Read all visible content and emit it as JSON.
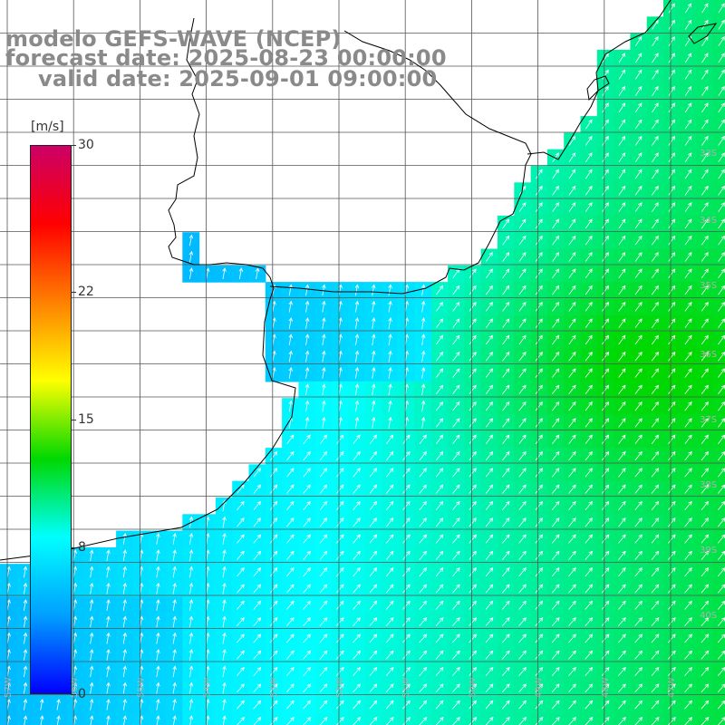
{
  "title": {
    "line1": "modelo GEFS-WAVE (NCEP)",
    "line2": "forecast date: 2025-08-23 00:00:00",
    "line3": "valid date: 2025-09-01 09:00:00"
  },
  "colorbar": {
    "unit": "[m/s]",
    "min": 0,
    "max": 30,
    "ticks": [
      {
        "value": 30,
        "label": "30"
      },
      {
        "value": 22,
        "label": "22"
      },
      {
        "value": 15,
        "label": "15"
      },
      {
        "value": 8,
        "label": "8"
      },
      {
        "value": 0,
        "label": "0"
      }
    ],
    "colors": [
      "#0000ff",
      "#00a0ff",
      "#00ffff",
      "#00d800",
      "#ffff00",
      "#ff8000",
      "#ff0000",
      "#cc0066"
    ]
  },
  "map": {
    "field": "wind speed",
    "land_color": "#ffffff",
    "coastline_color": "#000000",
    "gridline_color": "#555555",
    "arrow_color": "#ffffff",
    "latitude_labels": [
      "33S",
      "34S",
      "35S",
      "36S",
      "37S",
      "38S",
      "39S",
      "40S"
    ],
    "longitude_labels": [
      "57W",
      "56W",
      "55W",
      "54W",
      "53W",
      "52W",
      "51W",
      "50W",
      "49W",
      "48W",
      "47W"
    ],
    "wind_direction_note": "predominantly from SW (arrows pointing NE); more northward near coast"
  }
}
